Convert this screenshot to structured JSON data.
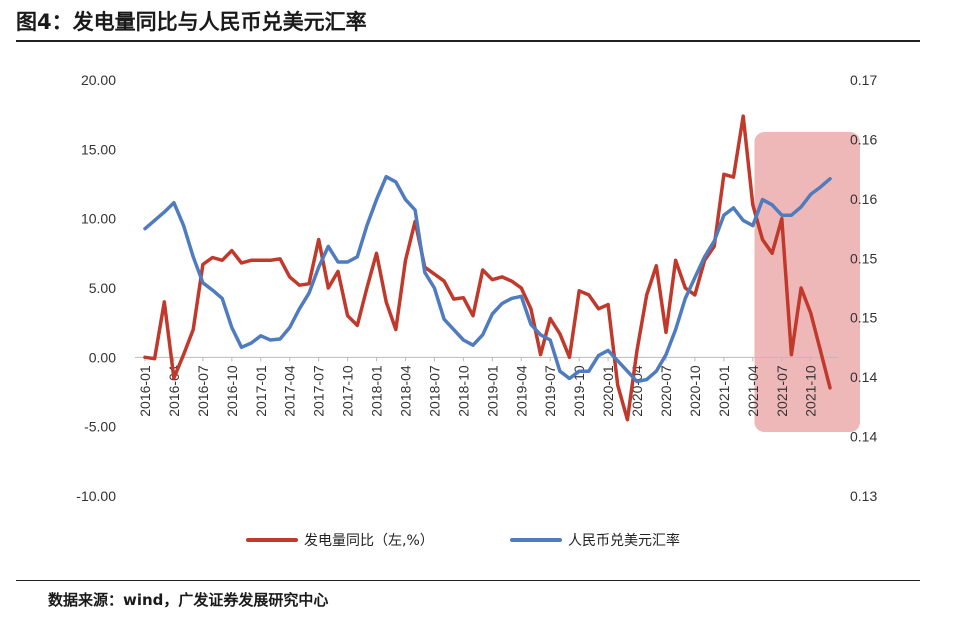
{
  "header": {
    "title": "图4：发电量同比与人民币兑美元汇率"
  },
  "footer": {
    "source": "数据来源：wind，广发证券发展研究中心"
  },
  "chart_data": {
    "type": "line",
    "title": "图4：发电量同比与人民币兑美元汇率",
    "x_tick_labels": [
      "2016-01",
      "2016-04",
      "2016-07",
      "2016-10",
      "2017-01",
      "2017-04",
      "2017-07",
      "2017-10",
      "2018-01",
      "2018-04",
      "2018-07",
      "2018-10",
      "2019-01",
      "2019-04",
      "2019-07",
      "2019-10",
      "2020-01",
      "2020-04",
      "2020-07",
      "2020-10",
      "2021-01",
      "2021-04",
      "2021-07",
      "2021-10"
    ],
    "x_range": [
      "2016-01",
      "2021-12"
    ],
    "left_axis": {
      "ticks": [
        "20.00",
        "15.00",
        "10.00",
        "5.00",
        "0.00",
        "-5.00",
        "-10.00"
      ],
      "ylim": [
        -10,
        20
      ]
    },
    "right_axis": {
      "ticks": [
        "0.17",
        "0.16",
        "0.16",
        "0.15",
        "0.15",
        "0.14",
        "0.14",
        "0.13"
      ],
      "ylim": [
        0.13,
        0.17
      ]
    },
    "highlight": {
      "x_start": "2021-05",
      "x_end": "2021-12",
      "color": "#e8a0a0"
    },
    "series": [
      {
        "name": "发电量同比（左,%）",
        "axis": "left",
        "color": "#c0392b",
        "x": [
          "2016-01",
          "2016-02",
          "2016-03",
          "2016-04",
          "2016-05",
          "2016-06",
          "2016-07",
          "2016-08",
          "2016-09",
          "2016-10",
          "2016-11",
          "2016-12",
          "2017-01",
          "2017-02",
          "2017-03",
          "2017-04",
          "2017-05",
          "2017-06",
          "2017-07",
          "2017-08",
          "2017-09",
          "2017-10",
          "2017-11",
          "2017-12",
          "2018-01",
          "2018-02",
          "2018-03",
          "2018-04",
          "2018-05",
          "2018-06",
          "2018-07",
          "2018-08",
          "2018-09",
          "2018-10",
          "2018-11",
          "2018-12",
          "2019-01",
          "2019-02",
          "2019-03",
          "2019-04",
          "2019-05",
          "2019-06",
          "2019-07",
          "2019-08",
          "2019-09",
          "2019-10",
          "2019-11",
          "2019-12",
          "2020-01",
          "2020-02",
          "2020-03",
          "2020-04",
          "2020-05",
          "2020-06",
          "2020-07",
          "2020-08",
          "2020-09",
          "2020-10",
          "2020-11",
          "2020-12",
          "2021-01",
          "2021-02",
          "2021-03",
          "2021-04",
          "2021-05",
          "2021-06",
          "2021-07",
          "2021-08",
          "2021-09",
          "2021-10",
          "2021-11",
          "2021-12"
        ],
        "values": [
          0.0,
          -0.1,
          4.0,
          -1.5,
          0.2,
          2.0,
          6.7,
          7.2,
          7.0,
          7.7,
          6.8,
          7.0,
          7.0,
          7.0,
          7.1,
          5.8,
          5.2,
          5.3,
          8.5,
          5.0,
          6.2,
          3.0,
          2.3,
          5.0,
          7.5,
          4.0,
          2.0,
          7.0,
          9.8,
          6.5,
          6.0,
          5.5,
          4.2,
          4.3,
          3.0,
          6.3,
          5.6,
          5.8,
          5.5,
          5.0,
          3.5,
          0.2,
          2.8,
          1.7,
          0.0,
          4.8,
          4.5,
          3.5,
          3.8,
          -2.0,
          -4.5,
          0.5,
          4.5,
          6.6,
          1.8,
          7.0,
          5.0,
          4.5,
          7.0,
          8.0,
          13.2,
          13.0,
          17.4,
          11.0,
          8.5,
          7.5,
          10.0,
          0.2,
          5.0,
          3.2,
          0.5,
          -2.2
        ]
      },
      {
        "name": "人民币兑美元汇率",
        "axis": "right",
        "color": "#4f7bbf",
        "x": [
          "2016-01",
          "2016-02",
          "2016-03",
          "2016-04",
          "2016-05",
          "2016-06",
          "2016-07",
          "2016-08",
          "2016-09",
          "2016-10",
          "2016-11",
          "2016-12",
          "2017-01",
          "2017-02",
          "2017-03",
          "2017-04",
          "2017-05",
          "2017-06",
          "2017-07",
          "2017-08",
          "2017-09",
          "2017-10",
          "2017-11",
          "2017-12",
          "2018-01",
          "2018-02",
          "2018-03",
          "2018-04",
          "2018-05",
          "2018-06",
          "2018-07",
          "2018-08",
          "2018-09",
          "2018-10",
          "2018-11",
          "2018-12",
          "2019-01",
          "2019-02",
          "2019-03",
          "2019-04",
          "2019-05",
          "2019-06",
          "2019-07",
          "2019-08",
          "2019-09",
          "2019-10",
          "2019-11",
          "2019-12",
          "2020-01",
          "2020-02",
          "2020-03",
          "2020-04",
          "2020-05",
          "2020-06",
          "2020-07",
          "2020-08",
          "2020-09",
          "2020-10",
          "2020-11",
          "2020-12",
          "2021-01",
          "2021-02",
          "2021-03",
          "2021-04",
          "2021-05",
          "2021-06",
          "2021-07",
          "2021-08",
          "2021-09",
          "2021-10",
          "2021-11",
          "2021-12"
        ],
        "values": [
          0.1557,
          0.1565,
          0.1573,
          0.1582,
          0.156,
          0.153,
          0.1505,
          0.1498,
          0.149,
          0.1462,
          0.1443,
          0.1447,
          0.1454,
          0.145,
          0.1451,
          0.1462,
          0.148,
          0.1495,
          0.152,
          0.154,
          0.1525,
          0.1525,
          0.153,
          0.156,
          0.1585,
          0.1607,
          0.1602,
          0.1585,
          0.1575,
          0.1515,
          0.15,
          0.147,
          0.146,
          0.145,
          0.1445,
          0.1455,
          0.1475,
          0.1485,
          0.149,
          0.1492,
          0.1465,
          0.1455,
          0.145,
          0.142,
          0.1413,
          0.142,
          0.142,
          0.1435,
          0.144,
          0.143,
          0.142,
          0.141,
          0.1412,
          0.142,
          0.1436,
          0.146,
          0.149,
          0.151,
          0.153,
          0.1545,
          0.157,
          0.1577,
          0.1565,
          0.156,
          0.1585,
          0.158,
          0.157,
          0.157,
          0.1578,
          0.159,
          0.1597,
          0.1605
        ]
      }
    ],
    "legend": {
      "placement": "bottom"
    }
  }
}
